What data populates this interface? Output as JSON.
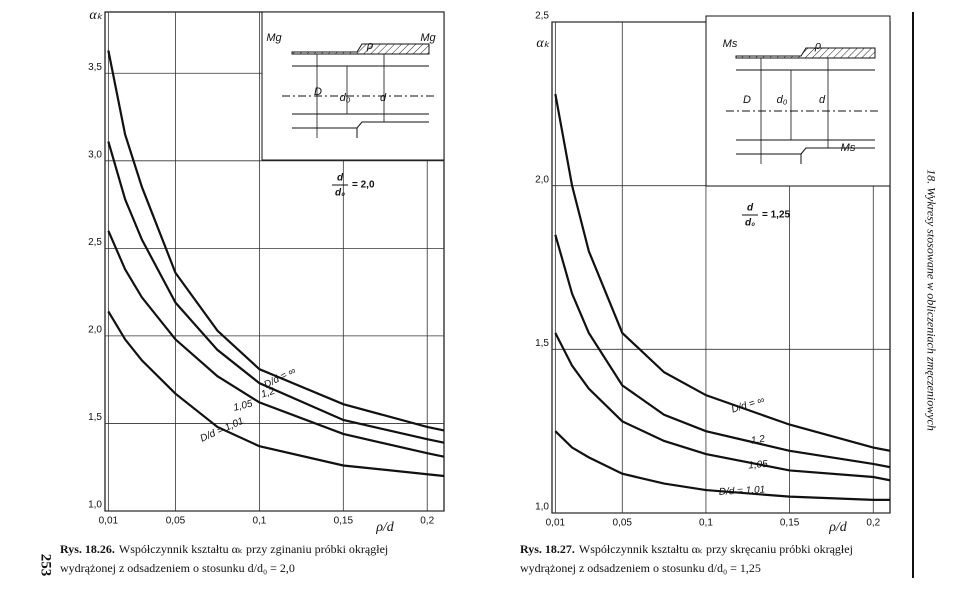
{
  "chart_data": [
    {
      "type": "line",
      "y_label": "αₖ",
      "x_label": "ρ/d",
      "x": [
        0.01,
        0.02,
        0.03,
        0.05,
        0.075,
        0.1,
        0.15,
        0.2,
        0.21
      ],
      "series": [
        {
          "name": "D/d = ∞",
          "color": "#111111",
          "values": [
            3.63,
            3.15,
            2.85,
            2.36,
            2.03,
            1.81,
            1.61,
            1.48,
            1.46
          ]
        },
        {
          "name": "1,2",
          "color": "#111111",
          "values": [
            3.11,
            2.78,
            2.55,
            2.19,
            1.92,
            1.73,
            1.52,
            1.41,
            1.39
          ]
        },
        {
          "name": "1,05",
          "color": "#111111",
          "values": [
            2.6,
            2.38,
            2.22,
            1.98,
            1.77,
            1.62,
            1.44,
            1.33,
            1.31
          ]
        },
        {
          "name": "D/d = 1,01",
          "color": "#111111",
          "values": [
            2.14,
            1.98,
            1.86,
            1.67,
            1.48,
            1.37,
            1.26,
            1.21,
            1.2
          ]
        }
      ],
      "xlim": [
        0.008,
        0.21
      ],
      "ylim": [
        1.0,
        3.85
      ],
      "xticks": [
        {
          "value": 0.01,
          "label": "0,01"
        },
        {
          "value": 0.05,
          "label": "0,05"
        },
        {
          "value": 0.1,
          "label": "0,1"
        },
        {
          "value": 0.15,
          "label": "0,15"
        },
        {
          "value": 0.2,
          "label": "0,2"
        }
      ],
      "yticks": [
        {
          "value": 1.0,
          "label": "1,0"
        },
        {
          "value": 1.5,
          "label": "1,5"
        },
        {
          "value": 2.0,
          "label": "2,0"
        },
        {
          "value": 2.5,
          "label": "2,5"
        },
        {
          "value": 3.0,
          "label": "3,0"
        },
        {
          "value": 3.5,
          "label": "3,5"
        }
      ],
      "grid": true,
      "ratio": {
        "numerator": "d",
        "denominator": "d₀",
        "value": "= 2,0"
      },
      "inset_labels": [
        "Mg",
        "Mg",
        "ρ",
        "D",
        "d₀",
        "d"
      ],
      "caption": {
        "label": "Rys. 18.26.",
        "lines": [
          "Współczynnik kształtu αₖ przy zginaniu próbki okrągłej",
          "wydrążonej z odsadzeniem o stosunku d/d₀ = 2,0"
        ]
      }
    },
    {
      "type": "line",
      "y_label": "αₖ",
      "x_label": "ρ/d",
      "x": [
        0.01,
        0.02,
        0.03,
        0.05,
        0.075,
        0.1,
        0.15,
        0.2,
        0.21
      ],
      "series": [
        {
          "name": "D/d = ∞",
          "color": "#111111",
          "values": [
            2.28,
            2.0,
            1.8,
            1.55,
            1.43,
            1.36,
            1.27,
            1.2,
            1.19
          ]
        },
        {
          "name": "1,2",
          "color": "#111111",
          "values": [
            1.85,
            1.67,
            1.55,
            1.39,
            1.3,
            1.25,
            1.19,
            1.15,
            1.14
          ]
        },
        {
          "name": "1,05",
          "color": "#111111",
          "values": [
            1.55,
            1.45,
            1.38,
            1.28,
            1.22,
            1.18,
            1.13,
            1.11,
            1.1
          ]
        },
        {
          "name": "D/d = 1,01",
          "color": "#111111",
          "values": [
            1.25,
            1.2,
            1.17,
            1.12,
            1.09,
            1.07,
            1.05,
            1.04,
            1.04
          ]
        }
      ],
      "xlim": [
        0.008,
        0.21
      ],
      "ylim": [
        1.0,
        2.5
      ],
      "xticks": [
        {
          "value": 0.01,
          "label": "0,01"
        },
        {
          "value": 0.05,
          "label": "0,05"
        },
        {
          "value": 0.1,
          "label": "0,1"
        },
        {
          "value": 0.15,
          "label": "0,15"
        },
        {
          "value": 0.2,
          "label": "0,2"
        }
      ],
      "yticks": [
        {
          "value": 1.0,
          "label": "1,0"
        },
        {
          "value": 1.5,
          "label": "1,5"
        },
        {
          "value": 2.0,
          "label": "2,0"
        },
        {
          "value": 2.5,
          "label": "2,5"
        }
      ],
      "grid": true,
      "ratio": {
        "numerator": "d",
        "denominator": "d₀",
        "value": "= 1,25"
      },
      "inset_labels": [
        "Ms",
        "Ms",
        "ρ",
        "D",
        "d₀",
        "d"
      ],
      "caption": {
        "label": "Rys. 18.27.",
        "lines": [
          "Współczynnik kształtu αₖ przy skręcaniu próbki okrągłej",
          "wydrążonej z odsadzeniem o stosunku d/d₀ = 1,25"
        ]
      }
    }
  ],
  "page_number": "253",
  "running_head": "18. Wykresy stosowane w obliczeniach zmęczeniowych"
}
